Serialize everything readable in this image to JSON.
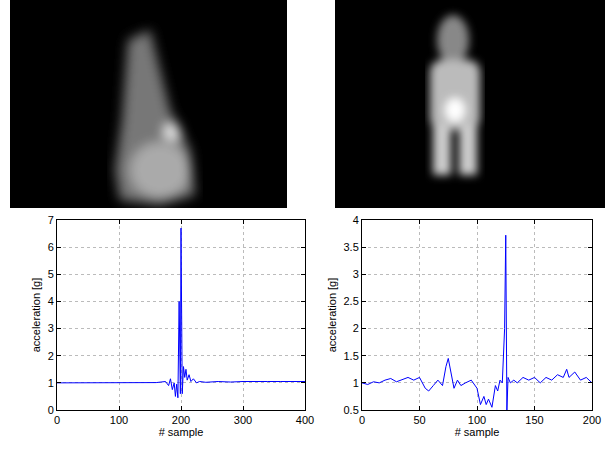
{
  "chart_data": [
    {
      "type": "line",
      "x_label": "# sample",
      "y_label": "acceleration [g]",
      "xlim": [
        0,
        400
      ],
      "xticks": [
        0,
        100,
        200,
        300,
        400
      ],
      "ylim": [
        0,
        7
      ],
      "yticks": [
        0,
        1,
        2,
        3,
        4,
        5,
        6,
        7
      ],
      "grid": true,
      "series": [
        {
          "color": "#0000ff",
          "x": [
            0,
            20,
            40,
            60,
            80,
            100,
            120,
            140,
            160,
            175,
            180,
            183,
            186,
            189,
            191,
            193,
            195,
            197,
            198,
            199,
            200,
            201,
            202,
            204,
            206,
            208,
            210,
            213,
            216,
            220,
            225,
            230,
            240,
            260,
            280,
            300,
            320,
            340,
            360,
            380,
            400
          ],
          "values": [
            1.0,
            1.0,
            1.02,
            1.0,
            1.01,
            1.0,
            1.02,
            1.0,
            1.01,
            1.05,
            0.9,
            1.15,
            0.75,
            1.0,
            0.5,
            0.95,
            0.45,
            4.0,
            1.0,
            0.6,
            6.7,
            2.0,
            0.6,
            1.6,
            1.2,
            1.5,
            1.1,
            1.3,
            1.05,
            1.15,
            1.0,
            1.05,
            1.02,
            1.05,
            1.03,
            1.05,
            1.04,
            1.05,
            1.05,
            1.05,
            1.05
          ]
        }
      ]
    },
    {
      "type": "line",
      "x_label": "# sample",
      "y_label": "acceleration [g]",
      "xlim": [
        0,
        200
      ],
      "xticks": [
        0,
        50,
        100,
        150,
        200
      ],
      "ylim": [
        0.5,
        4
      ],
      "yticks": [
        0.5,
        1,
        1.5,
        2,
        2.5,
        3,
        3.5,
        4
      ],
      "grid": true,
      "series": [
        {
          "color": "#0000ff",
          "x": [
            0,
            5,
            10,
            15,
            20,
            25,
            30,
            35,
            40,
            45,
            50,
            55,
            58,
            62,
            66,
            70,
            73,
            75,
            77,
            80,
            83,
            86,
            90,
            95,
            100,
            103,
            106,
            108,
            110,
            113,
            116,
            118,
            120,
            122,
            124,
            125,
            126,
            127,
            129,
            132,
            135,
            140,
            145,
            150,
            155,
            160,
            165,
            170,
            175,
            178,
            180,
            185,
            190,
            195,
            200
          ],
          "values": [
            1.0,
            0.97,
            1.02,
            1.0,
            1.05,
            1.08,
            1.02,
            1.06,
            1.1,
            1.05,
            1.1,
            0.9,
            0.85,
            0.95,
            1.05,
            0.95,
            1.3,
            1.45,
            1.2,
            0.9,
            1.05,
            0.95,
            1.0,
            1.05,
            0.9,
            0.6,
            0.75,
            0.6,
            0.7,
            0.55,
            0.95,
            0.85,
            1.05,
            1.0,
            2.0,
            3.72,
            0.5,
            1.1,
            1.0,
            1.05,
            1.0,
            1.1,
            1.05,
            1.1,
            1.0,
            1.1,
            1.05,
            1.15,
            1.1,
            1.25,
            1.1,
            1.2,
            1.05,
            1.1,
            1.0
          ]
        }
      ]
    }
  ]
}
